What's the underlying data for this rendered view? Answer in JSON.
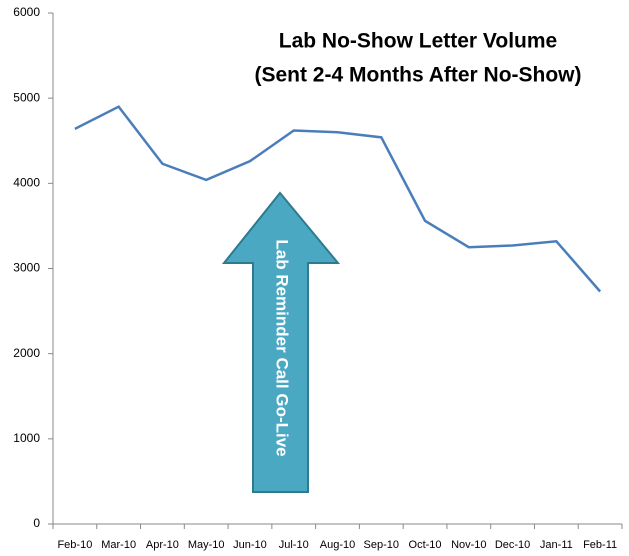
{
  "chart_data": {
    "type": "line",
    "title_lines": [
      "Lab No-Show Letter Volume",
      "(Sent 2-4 Months After No-Show)"
    ],
    "annotation": "Lab Reminder Call Go-Live",
    "categories": [
      "Feb-10",
      "Mar-10",
      "Apr-10",
      "May-10",
      "Jun-10",
      "Jul-10",
      "Aug-10",
      "Sep-10",
      "Oct-10",
      "Nov-10",
      "Dec-10",
      "Jan-11",
      "Feb-11"
    ],
    "values": [
      4640,
      4900,
      4230,
      4040,
      4260,
      4620,
      4600,
      4540,
      3560,
      3250,
      3270,
      3320,
      2730
    ],
    "color": "#4a7ebb",
    "ylim": [
      0,
      6000
    ],
    "yticks": [
      0,
      1000,
      2000,
      3000,
      4000,
      5000,
      6000
    ],
    "grid": false
  }
}
